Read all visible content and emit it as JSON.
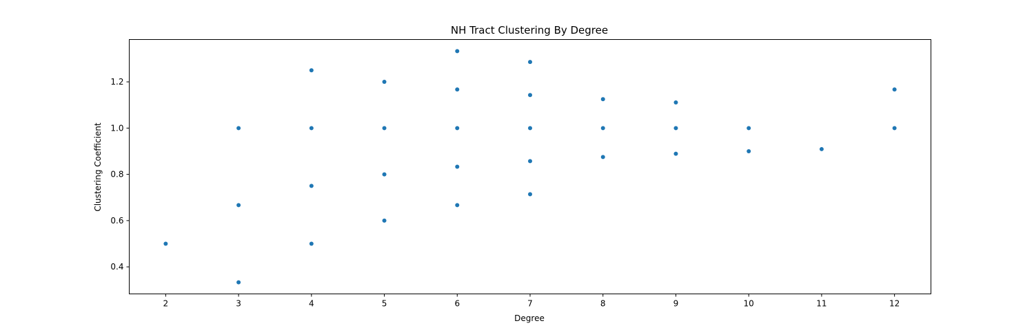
{
  "chart_data": {
    "type": "scatter",
    "title": "NH Tract Clustering By Degree",
    "xlabel": "Degree",
    "ylabel": "Clustering Coefficient",
    "xlim": [
      1.5,
      12.5
    ],
    "ylim": [
      0.283,
      1.383
    ],
    "xticks": [
      "2",
      "3",
      "4",
      "5",
      "6",
      "7",
      "8",
      "9",
      "10",
      "11",
      "12"
    ],
    "yticks": [
      "0.4",
      "0.6",
      "0.8",
      "1.0",
      "1.2"
    ],
    "grid": false,
    "legend": "none",
    "marker_color": "#1f77b4",
    "points": [
      {
        "x": 2,
        "y": 0.5
      },
      {
        "x": 3,
        "y": 1.0
      },
      {
        "x": 3,
        "y": 0.667
      },
      {
        "x": 3,
        "y": 0.333
      },
      {
        "x": 4,
        "y": 1.25
      },
      {
        "x": 4,
        "y": 1.0
      },
      {
        "x": 4,
        "y": 0.75
      },
      {
        "x": 4,
        "y": 0.5
      },
      {
        "x": 5,
        "y": 1.2
      },
      {
        "x": 5,
        "y": 1.0
      },
      {
        "x": 5,
        "y": 0.8
      },
      {
        "x": 5,
        "y": 0.6
      },
      {
        "x": 6,
        "y": 1.333
      },
      {
        "x": 6,
        "y": 1.167
      },
      {
        "x": 6,
        "y": 1.0
      },
      {
        "x": 6,
        "y": 0.833
      },
      {
        "x": 6,
        "y": 0.667
      },
      {
        "x": 7,
        "y": 1.286
      },
      {
        "x": 7,
        "y": 1.143
      },
      {
        "x": 7,
        "y": 1.0
      },
      {
        "x": 7,
        "y": 0.857
      },
      {
        "x": 7,
        "y": 0.714
      },
      {
        "x": 8,
        "y": 1.125
      },
      {
        "x": 8,
        "y": 1.0
      },
      {
        "x": 8,
        "y": 0.875
      },
      {
        "x": 9,
        "y": 1.111
      },
      {
        "x": 9,
        "y": 1.0
      },
      {
        "x": 9,
        "y": 0.889
      },
      {
        "x": 10,
        "y": 1.0
      },
      {
        "x": 10,
        "y": 0.9
      },
      {
        "x": 11,
        "y": 0.909
      },
      {
        "x": 12,
        "y": 1.167
      },
      {
        "x": 12,
        "y": 1.0
      }
    ]
  }
}
